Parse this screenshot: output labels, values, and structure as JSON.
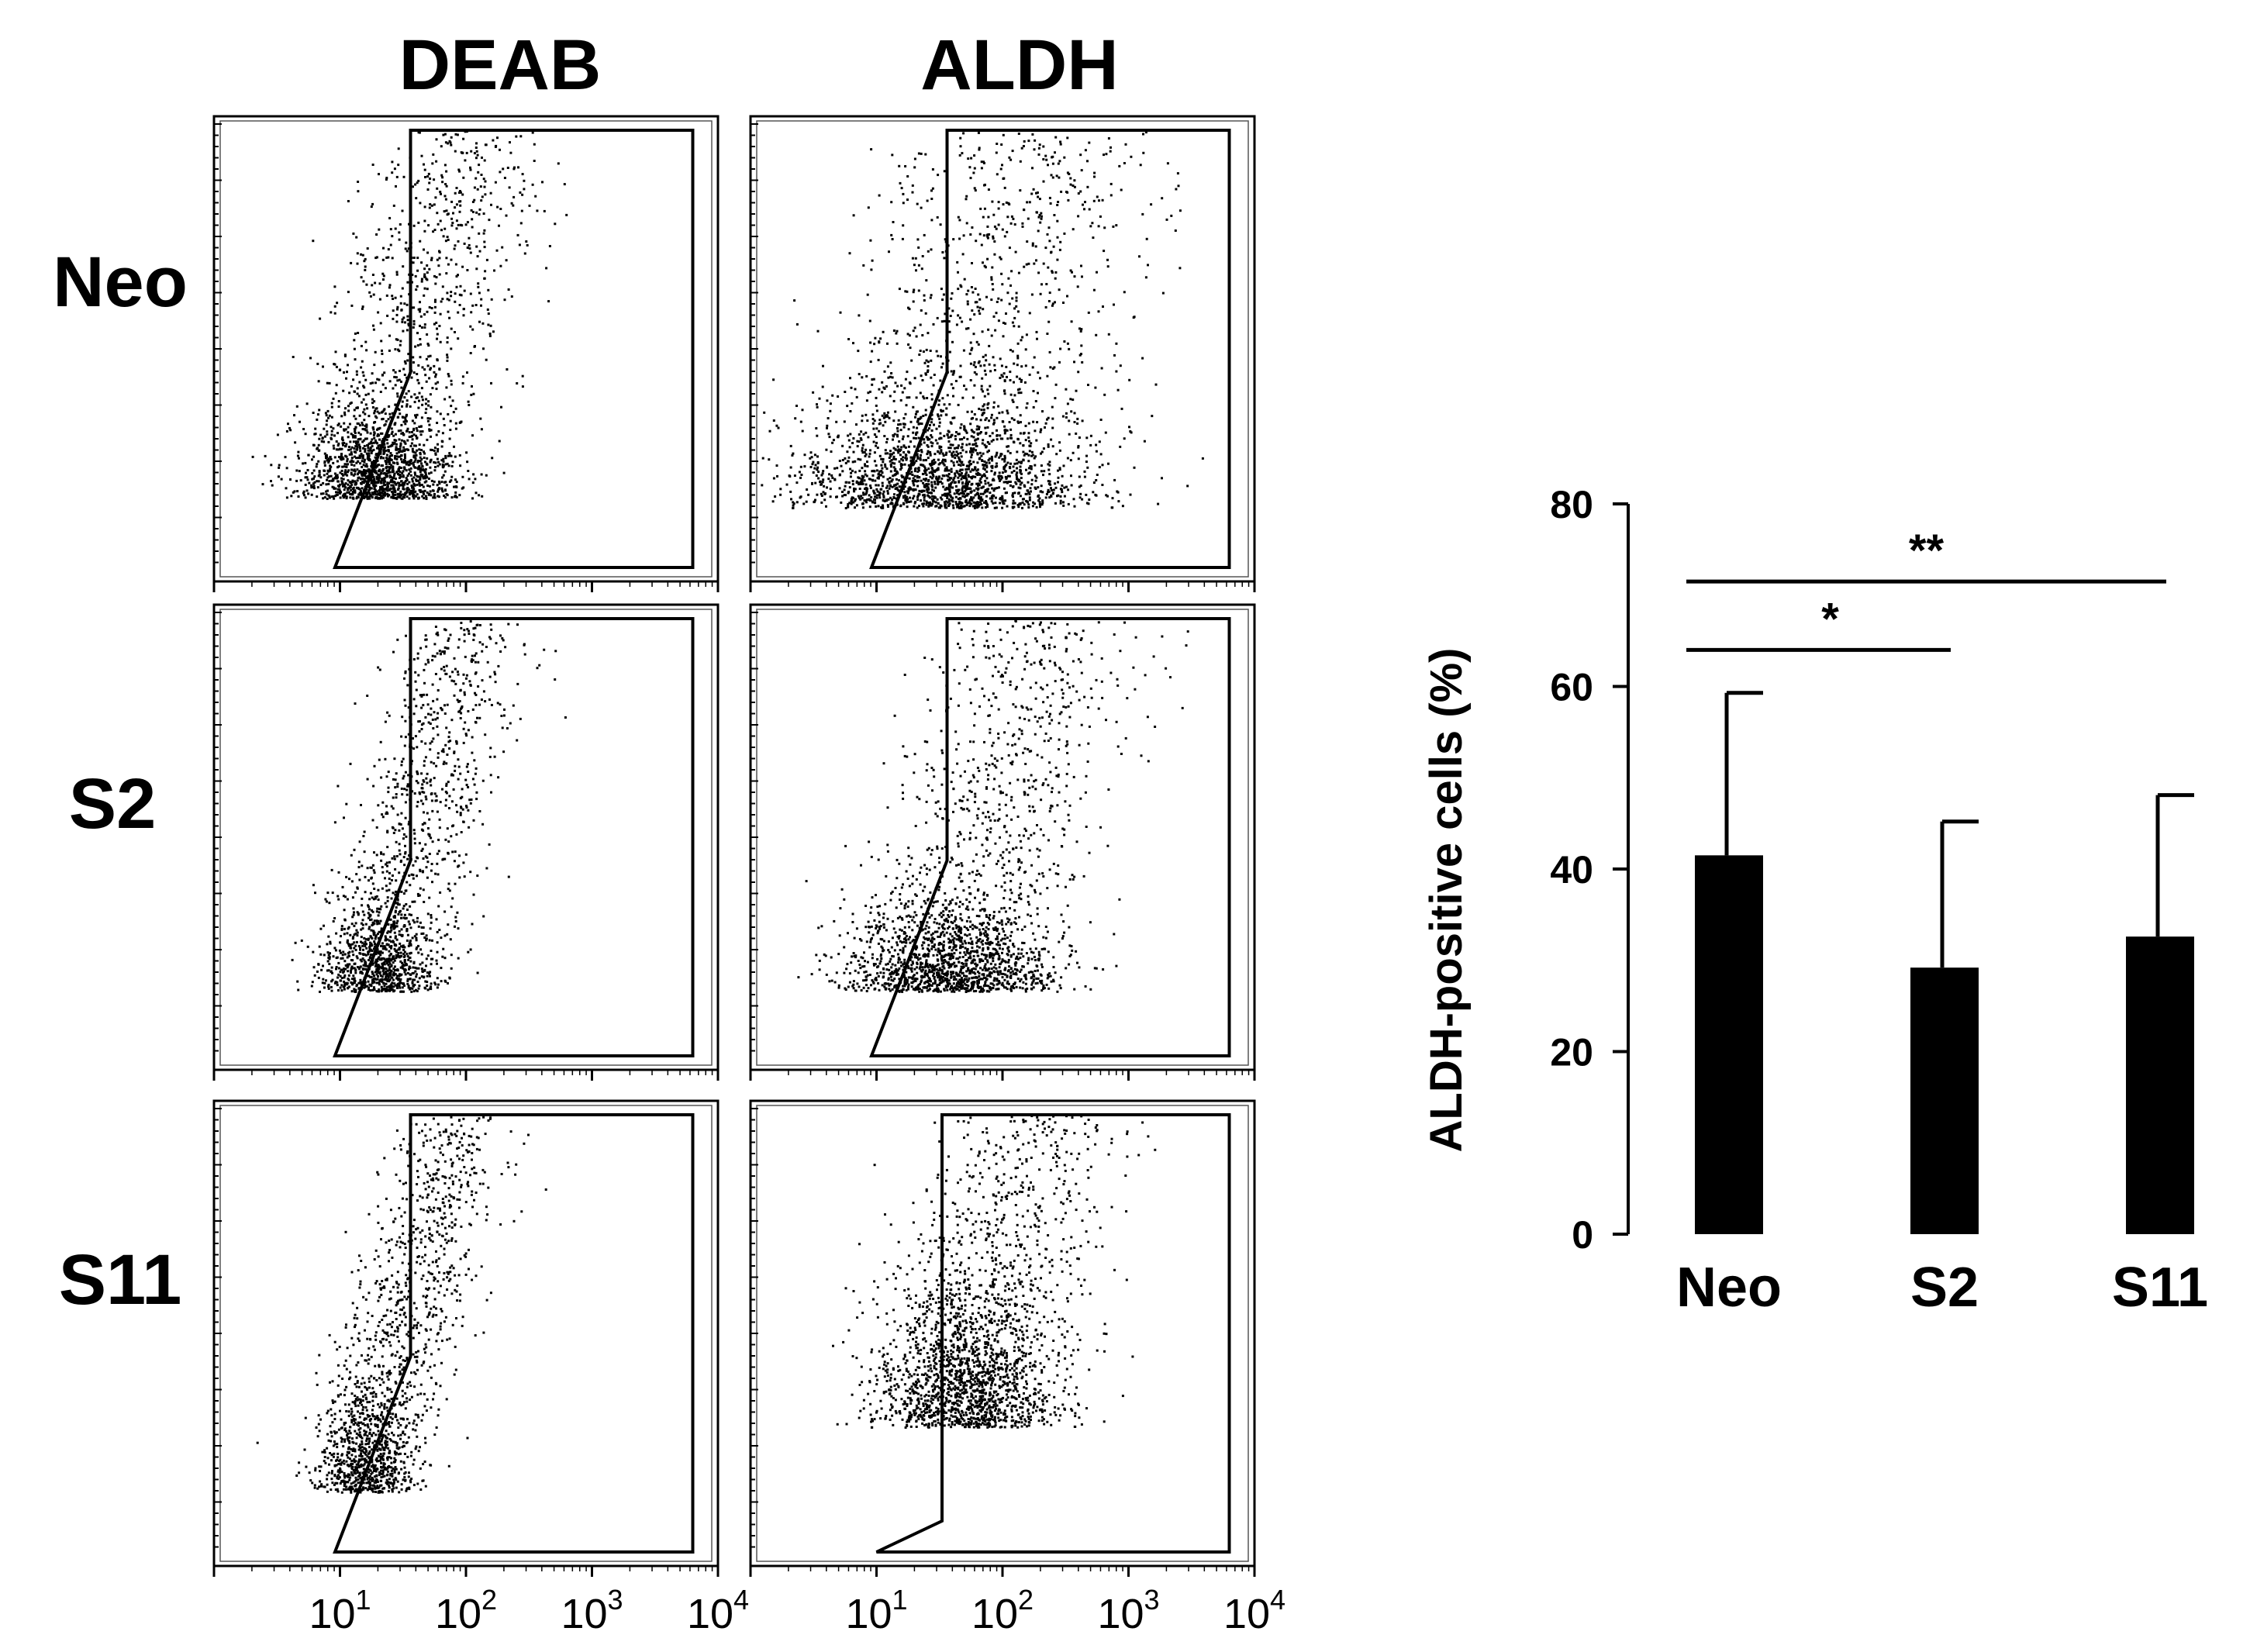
{
  "chart_data": [
    {
      "type": "scatter",
      "panel": "flow-cytometry-grid",
      "column_labels": [
        "DEAB",
        "ALDH"
      ],
      "row_labels": [
        "Neo",
        "S2",
        "S11"
      ],
      "x_scale": "log",
      "xlim": [
        1,
        10000
      ],
      "x_tick_labels": [
        {
          "base": "10",
          "exp": "1"
        },
        {
          "base": "10",
          "exp": "2"
        },
        {
          "base": "10",
          "exp": "3"
        },
        {
          "base": "10",
          "exp": "4"
        }
      ],
      "x_tick_values": [
        10,
        100,
        1000,
        10000
      ],
      "populations": {
        "DEAB": {
          "Neo": {
            "x_center_log": 1.3,
            "y_center_fraction": 0.18,
            "spread_x": 0.3,
            "spread_y": 0.12,
            "tail": 0.35,
            "count": 2200
          },
          "S2": {
            "x_center_log": 1.3,
            "y_center_fraction": 0.17,
            "spread_x": 0.22,
            "spread_y": 0.12,
            "tail": 0.45,
            "count": 1700
          },
          "S11": {
            "x_center_log": 1.2,
            "y_center_fraction": 0.16,
            "spread_x": 0.18,
            "spread_y": 0.14,
            "tail": 0.55,
            "count": 1700
          }
        },
        "ALDH": {
          "Neo": {
            "x_center_log": 1.5,
            "y_center_fraction": 0.16,
            "spread_x": 0.55,
            "spread_y": 0.14,
            "tail": 0.3,
            "count": 2600
          },
          "S2": {
            "x_center_log": 1.6,
            "y_center_fraction": 0.17,
            "spread_x": 0.4,
            "spread_y": 0.12,
            "tail": 0.35,
            "count": 2200
          },
          "S11": {
            "x_center_log": 1.7,
            "y_center_fraction": 0.3,
            "spread_x": 0.35,
            "spread_y": 0.2,
            "tail": 0.3,
            "count": 2400
          }
        }
      }
    },
    {
      "type": "bar",
      "categories": [
        "Neo",
        "S2",
        "S11"
      ],
      "values": [
        41.5,
        29.2,
        32.6
      ],
      "error_upper": [
        17.8,
        16.0,
        15.5
      ],
      "ylabel": "ALDH-positive cells (%)",
      "ylim": [
        0,
        80
      ],
      "yticks": [
        0,
        20,
        40,
        60,
        80
      ],
      "bar_color": "#000000",
      "significance": [
        {
          "from": "Neo",
          "to": "S2",
          "label": "*",
          "y": 64
        },
        {
          "from": "Neo",
          "to": "S11",
          "label": "**",
          "y": 71.5
        }
      ]
    }
  ]
}
